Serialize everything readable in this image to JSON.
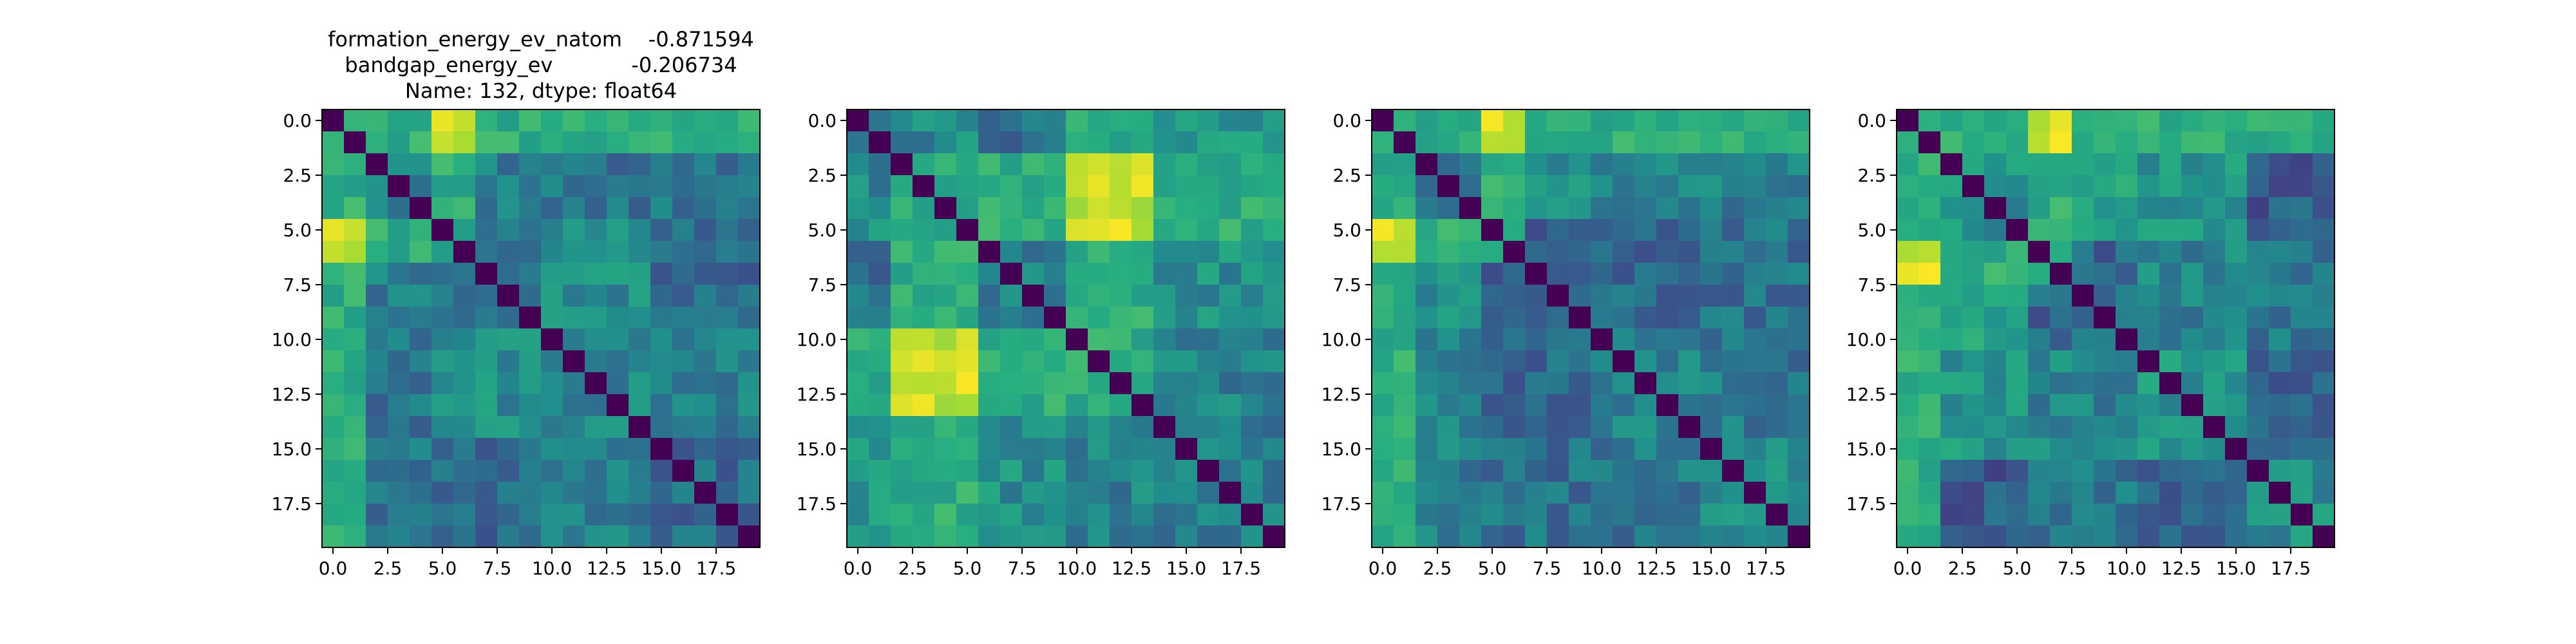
{
  "title_lines": [
    "formation_energy_ev_natom    -0.871594",
    "bandgap_energy_ev            -0.206734",
    "Name: 132, dtype: float64"
  ],
  "chart_data": [
    {
      "type": "heatmap",
      "colormap": "viridis",
      "shape": [
        20,
        20
      ],
      "xticks": [
        "0.0",
        "2.5",
        "5.0",
        "7.5",
        "10.0",
        "12.5",
        "15.0",
        "17.5"
      ],
      "yticks": [
        "0.0",
        "2.5",
        "5.0",
        "7.5",
        "10.0",
        "12.5",
        "15.0",
        "17.5"
      ],
      "value_range": [
        0,
        1
      ],
      "groups": [
        [
          0,
          4
        ],
        [
          5,
          9
        ],
        [
          10,
          14
        ],
        [
          15,
          19
        ]
      ],
      "strong_pair": [
        [
          0,
          1
        ],
        [
          5,
          6
        ]
      ],
      "grid": false
    },
    {
      "type": "heatmap",
      "colormap": "viridis",
      "shape": [
        20,
        20
      ],
      "xticks": [
        "0.0",
        "2.5",
        "5.0",
        "7.5",
        "10.0",
        "12.5",
        "15.0",
        "17.5"
      ],
      "yticks": [
        "0.0",
        "2.5",
        "5.0",
        "7.5",
        "10.0",
        "12.5",
        "15.0",
        "17.5"
      ],
      "value_range": [
        0,
        1
      ],
      "groups": [
        [
          0,
          1
        ],
        [
          2,
          5
        ],
        [
          6,
          9
        ],
        [
          10,
          13
        ],
        [
          14,
          19
        ]
      ],
      "strong_pair": [
        [
          2,
          5
        ],
        [
          10,
          13
        ]
      ],
      "grid": false
    },
    {
      "type": "heatmap",
      "colormap": "viridis",
      "shape": [
        20,
        20
      ],
      "xticks": [
        "0.0",
        "2.5",
        "5.0",
        "7.5",
        "10.0",
        "12.5",
        "15.0",
        "17.5"
      ],
      "yticks": [
        "0.0",
        "2.5",
        "5.0",
        "7.5",
        "10.0",
        "12.5",
        "15.0",
        "17.5"
      ],
      "value_range": [
        0,
        1
      ],
      "groups": [
        [
          0,
          4
        ],
        [
          5,
          9
        ],
        [
          10,
          14
        ],
        [
          15,
          19
        ]
      ],
      "strong_pair": [
        [
          0,
          1
        ],
        [
          5,
          6
        ]
      ],
      "grid": false
    },
    {
      "type": "heatmap",
      "colormap": "viridis",
      "shape": [
        20,
        20
      ],
      "xticks": [
        "0.0",
        "2.5",
        "5.0",
        "7.5",
        "10.0",
        "12.5",
        "15.0",
        "17.5"
      ],
      "yticks": [
        "0.0",
        "2.5",
        "5.0",
        "7.5",
        "10.0",
        "12.5",
        "15.0",
        "17.5"
      ],
      "value_range": [
        0,
        1
      ],
      "groups": [
        [
          0,
          5
        ],
        [
          6,
          10
        ],
        [
          11,
          15
        ],
        [
          16,
          19
        ]
      ],
      "strong_pair": [
        [
          0,
          1
        ],
        [
          6,
          7
        ]
      ],
      "grid": false
    }
  ]
}
